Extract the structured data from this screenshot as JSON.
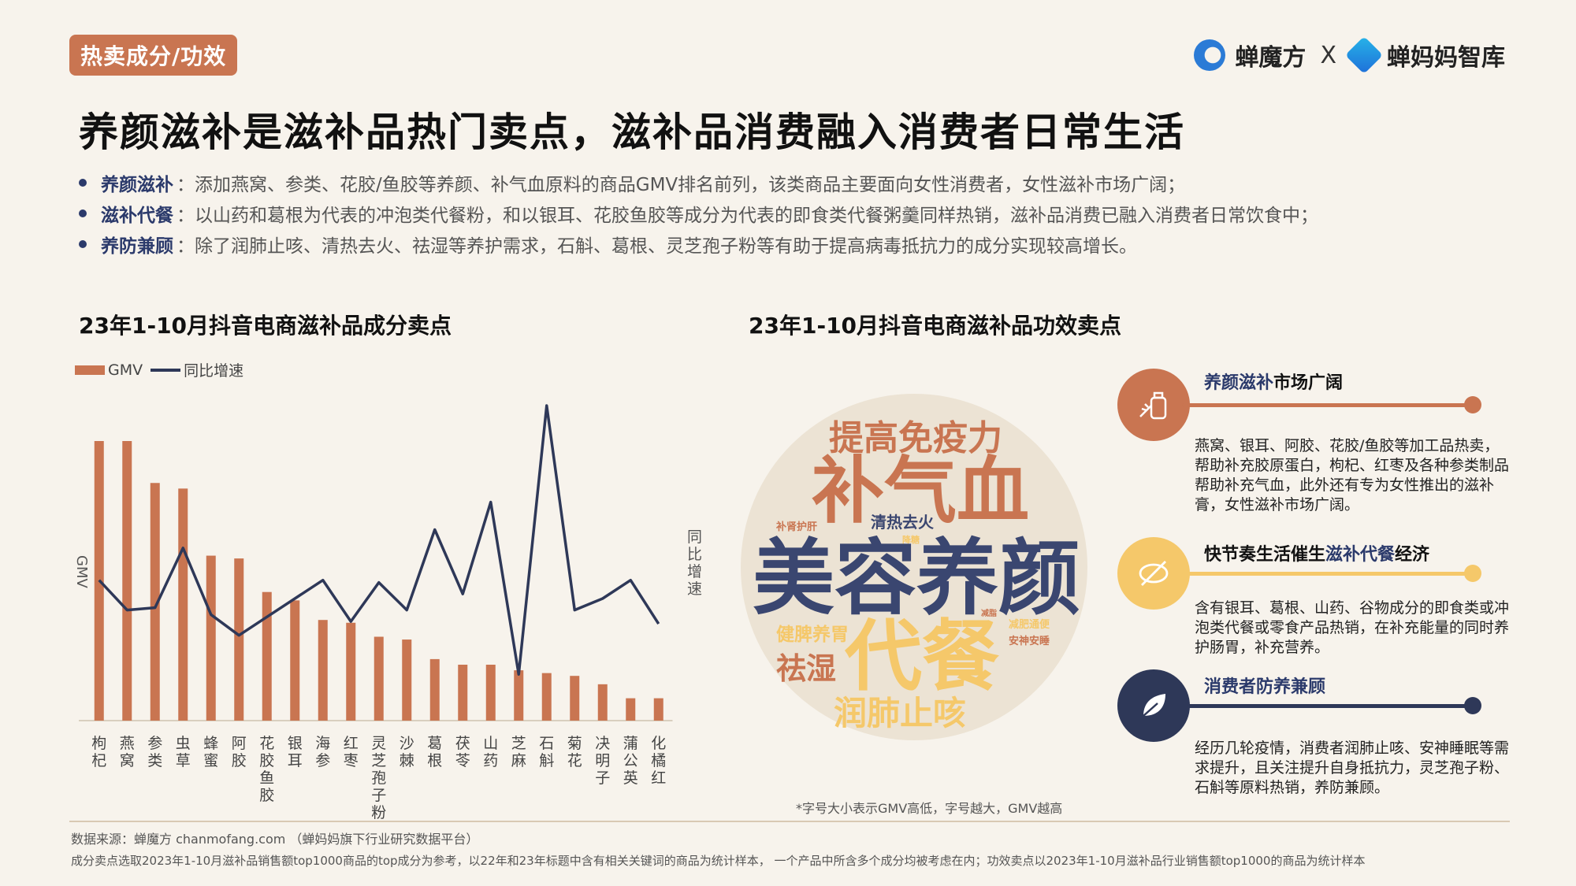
{
  "tag": "热卖成分/功效",
  "logos": {
    "brand1": "蝉魔方",
    "separator": "X",
    "brand2": "蝉妈妈智库"
  },
  "headline": "养颜滋补是滋补品热门卖点，滋补品消费融入消费者日常生活",
  "bullets": [
    {
      "key": "养颜滋补",
      "text": "：添加燕窝、参类、花胶/鱼胶等养颜、补气血原料的商品GMV排名前列，该类商品主要面向女性消费者，女性滋补市场广阔；"
    },
    {
      "key": "滋补代餐",
      "text": "：以山药和葛根为代表的冲泡类代餐粉，和以银耳、花胶鱼胶等成分为代表的即食类代餐粥羹同样热销，滋补品消费已融入消费者日常饮食中；"
    },
    {
      "key": "养防兼顾",
      "text": "：除了润肺止咳、清热去火、祛湿等养护需求，石斛、葛根、灵芝孢子粉等有助于提高病毒抵抗力的成分实现较高增长。"
    }
  ],
  "chart_data": {
    "type": "bar",
    "title": "23年1-10月抖音电商滋补品成分卖点",
    "ylabel": "GMV",
    "y2label": "同比增速",
    "legend": [
      "GMV",
      "同比增速"
    ],
    "categories": [
      "枸杞",
      "燕窝",
      "参类",
      "虫草",
      "蜂蜜",
      "阿胶",
      "花胶鱼胶",
      "银耳",
      "海参",
      "红枣",
      "灵芝孢子粉",
      "沙棘",
      "葛根",
      "茯苓",
      "山药",
      "芝麻",
      "石斛",
      "菊花",
      "决明子",
      "蒲公英",
      "化橘红"
    ],
    "series": [
      {
        "name": "GMV",
        "values": [
          100,
          100,
          85,
          83,
          59,
          58,
          46,
          43,
          36,
          35,
          30,
          29,
          22,
          20,
          20,
          18,
          17,
          16,
          13,
          8,
          8
        ]
      },
      {
        "name": "同比增速",
        "values": [
          44,
          31,
          32,
          58,
          29,
          20,
          28,
          36,
          44,
          26,
          43,
          31,
          66,
          38,
          78,
          3,
          120,
          31,
          36,
          44,
          25
        ]
      }
    ]
  },
  "wordcloud": {
    "title": "23年1-10月抖音电商滋补品功效卖点",
    "words": [
      {
        "text": "提高免疫力",
        "color": "#c97551"
      },
      {
        "text": "补气血",
        "color": "#c97551"
      },
      {
        "text": "补肾护肝",
        "color": "#c97551"
      },
      {
        "text": "清热去火",
        "color": "#3a4670"
      },
      {
        "text": "降糖",
        "color": "#f5c86a"
      },
      {
        "text": "美容养颜",
        "color": "#3a4670"
      },
      {
        "text": "健脾养胃",
        "color": "#f5c86a"
      },
      {
        "text": "代餐",
        "color": "#f5c86a"
      },
      {
        "text": "减肥通便",
        "color": "#f5c86a"
      },
      {
        "text": "减脂",
        "color": "#c97551"
      },
      {
        "text": "安神安睡",
        "color": "#c97551"
      },
      {
        "text": "祛湿",
        "color": "#c97551"
      },
      {
        "text": "润肺止咳",
        "color": "#f5c86a"
      }
    ],
    "note": "*字号大小表示GMV高低，字号越大，GMV越高"
  },
  "insights": [
    {
      "title_hl": "养颜滋补",
      "title_rest": "市场广阔",
      "text": "燕窝、银耳、阿胶、花胶/鱼胶等加工品热卖，帮助补充胶原蛋白，枸杞、红枣及各种参类制品帮助补充气血，此外还有专为女性推出的滋补膏，女性滋补市场广阔。",
      "color": "#c97551",
      "icon": "herb-bottle-icon"
    },
    {
      "title_pre": "快节奏生活催生",
      "title_hl": "滋补代餐",
      "title_rest": "经济",
      "text": "含有银耳、葛根、山药、谷物成分的即食类或冲泡类代餐或零食产品热销，在补充能量的同时养护肠胃，补充营养。",
      "color": "#f5c86a",
      "icon": "no-meal-icon"
    },
    {
      "title_hl": "消费者防养兼顾",
      "title_rest": "",
      "text": "经历几轮疫情，消费者润肺止咳、安神睡眠等需求提升，且关注提升自身抵抗力，灵芝孢子粉、石斛等原料热销，养防兼顾。",
      "color": "#2e3858",
      "icon": "leaf-icon"
    }
  ],
  "source": "数据来源：蝉魔方 chanmofang.com （蝉妈妈旗下行业研究数据平台）",
  "footnote": "成分卖点选取2023年1-10月滋补品销售额top1000商品的top成分为参考，以22年和23年标题中含有相关关键词的商品为统计样本， 一个产品中所含多个成分均被考虑在内；功效卖点以2023年1-10月滋补品行业销售额top1000的商品为统计样本"
}
